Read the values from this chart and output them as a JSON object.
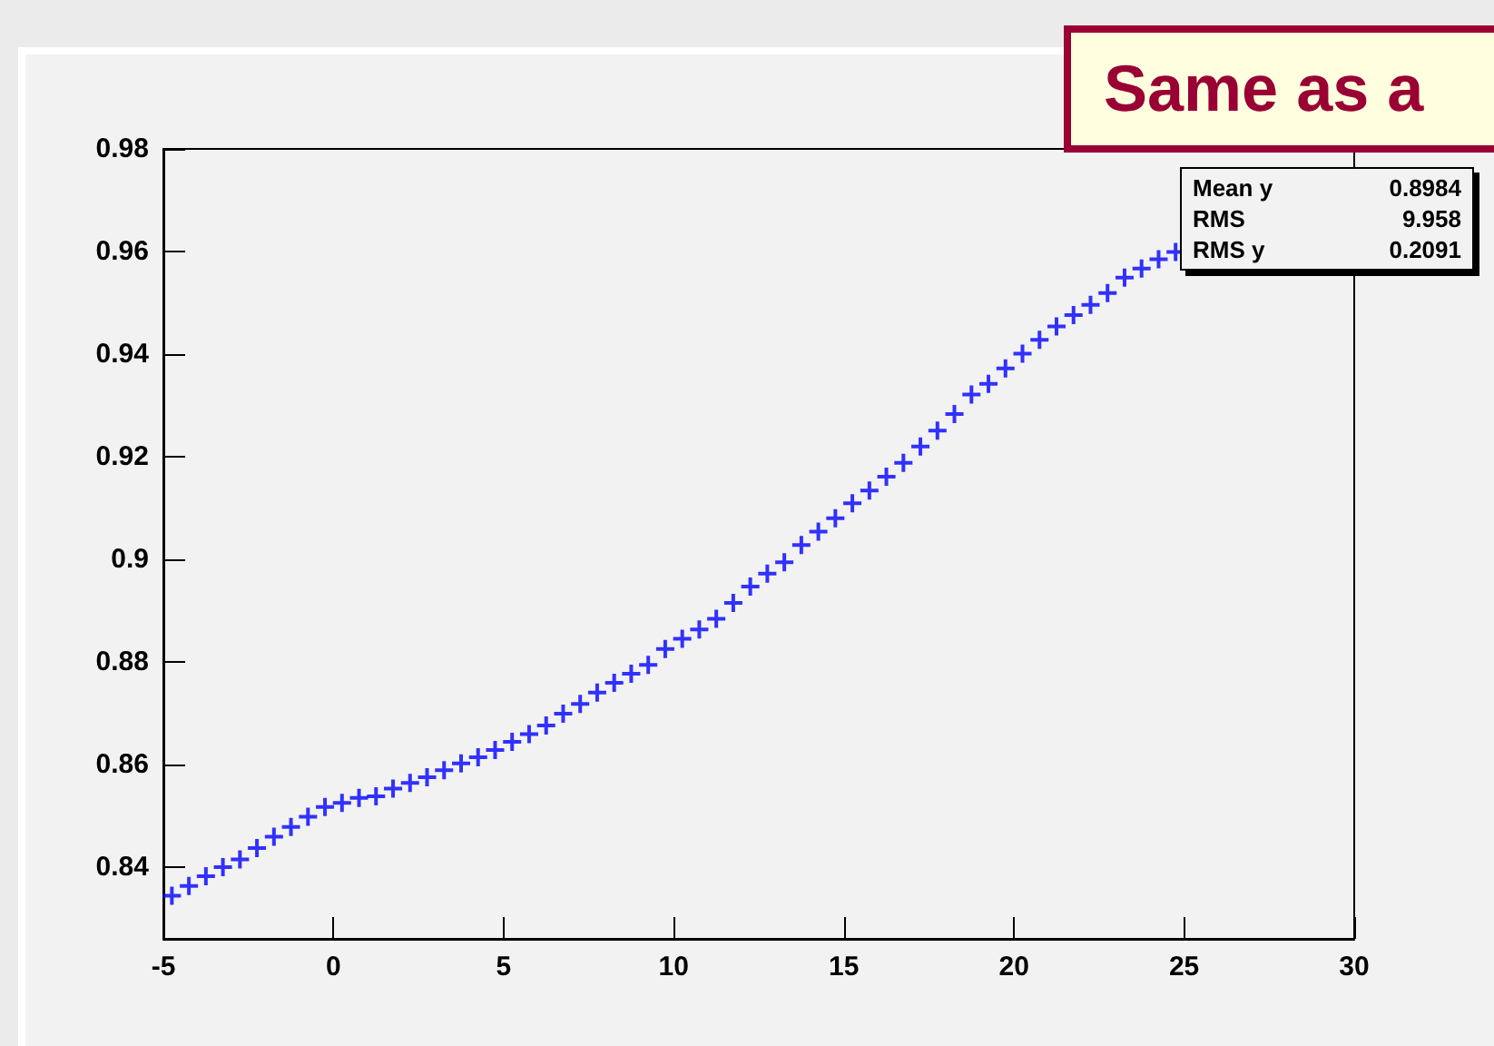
{
  "chart_data": {
    "type": "scatter",
    "title": "Same as a",
    "annotations": [
      "Mean y 0.8984",
      "RMS 9.958",
      "RMS y 0.2091"
    ],
    "x": [
      -4.75,
      -4.25,
      -3.75,
      -3.25,
      -2.75,
      -2.25,
      -1.75,
      -1.25,
      -0.75,
      -0.25,
      0.25,
      0.75,
      1.25,
      1.75,
      2.25,
      2.75,
      3.25,
      3.75,
      4.25,
      4.75,
      5.25,
      5.75,
      6.25,
      6.75,
      7.25,
      7.75,
      8.25,
      8.75,
      9.25,
      9.75,
      10.25,
      10.75,
      11.25,
      11.75,
      12.25,
      12.75,
      13.25,
      13.75,
      14.25,
      14.75,
      15.25,
      15.75,
      16.25,
      16.75,
      17.25,
      17.75,
      18.25,
      18.75,
      19.25,
      19.75,
      20.25,
      20.75,
      21.25,
      21.75,
      22.25,
      22.75,
      23.25,
      23.75,
      24.25,
      24.75
    ],
    "series": [
      {
        "color": "#0000ff",
        "values": [
          0.8344,
          0.8363,
          0.8382,
          0.84,
          0.8415,
          0.8437,
          0.8459,
          0.8478,
          0.8498,
          0.8517,
          0.8525,
          0.8535,
          0.8538,
          0.8553,
          0.8564,
          0.8575,
          0.8589,
          0.8602,
          0.8614,
          0.8628,
          0.8644,
          0.8659,
          0.8676,
          0.8699,
          0.8718,
          0.874,
          0.8759,
          0.8777,
          0.8794,
          0.8825,
          0.8845,
          0.8863,
          0.8884,
          0.8915,
          0.8947,
          0.8972,
          0.8994,
          0.9028,
          0.9054,
          0.908,
          0.9109,
          0.9134,
          0.9161,
          0.9188,
          0.922,
          0.9251,
          0.9283,
          0.9321,
          0.9342,
          0.9372,
          0.9401,
          0.9428,
          0.9454,
          0.9476,
          0.9496,
          0.9519,
          0.9549,
          0.9567,
          0.9585,
          0.9599
        ]
      }
    ],
    "xlim": [
      -5,
      30
    ],
    "xticks": [
      -5,
      0,
      5,
      10,
      15,
      20,
      25,
      30
    ],
    "ylim": [
      0.826,
      0.98
    ],
    "yticks": [
      0.84,
      0.86,
      0.88,
      0.9,
      0.92,
      0.94,
      0.96,
      0.98
    ],
    "grid": false,
    "marker": "cross"
  }
}
